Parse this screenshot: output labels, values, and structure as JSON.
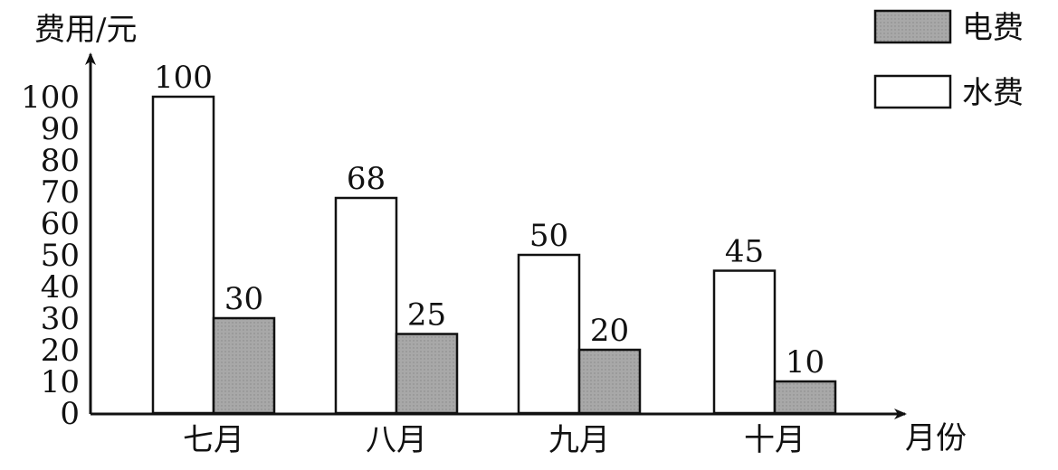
{
  "chart_data": {
    "type": "bar",
    "ylabel": "费用/元",
    "xlabel": "月份",
    "categories": [
      "七月",
      "八月",
      "九月",
      "十月"
    ],
    "series": [
      {
        "name": "水费",
        "values": [
          100,
          68,
          50,
          45
        ],
        "color": "#ffffff"
      },
      {
        "name": "电费",
        "values": [
          30,
          25,
          20,
          10
        ],
        "color": "#a8a8a8"
      }
    ],
    "ylim": [
      0,
      100
    ],
    "yticks": [
      0,
      10,
      20,
      30,
      40,
      50,
      60,
      70,
      80,
      90,
      100
    ],
    "grid": false,
    "legend": "top-right",
    "legend_order": [
      "电费",
      "水费"
    ]
  }
}
